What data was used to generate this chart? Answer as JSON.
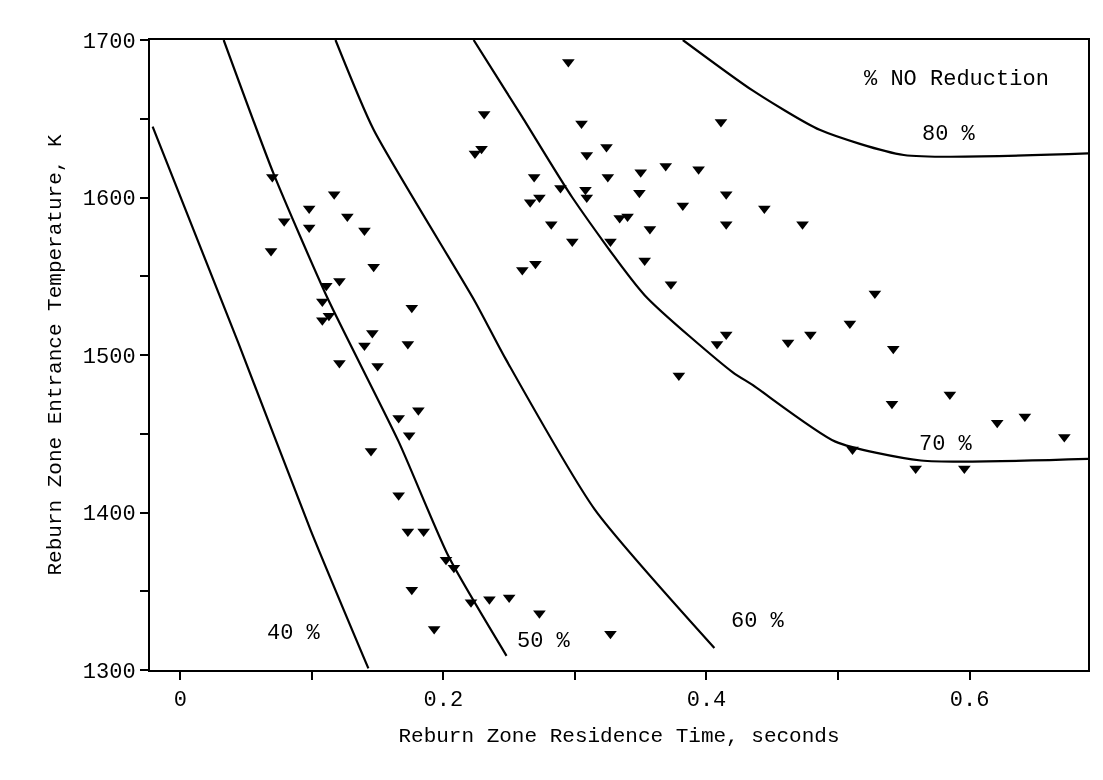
{
  "chart_data": {
    "type": "scatter",
    "xlabel": "Reburn Zone Residence Time, seconds",
    "ylabel": "Reburn Zone Entrance Temperature, K",
    "xlim": [
      -0.023,
      0.69
    ],
    "ylim": [
      1300,
      1700
    ],
    "xticks": [
      0,
      {
        "value": 0.1,
        "label": null
      },
      {
        "value": 0.2,
        "label": "0.2"
      },
      {
        "value": 0.3,
        "label": null
      },
      {
        "value": 0.4,
        "label": "0.4"
      },
      {
        "value": 0.5,
        "label": null
      },
      {
        "value": 0.6,
        "label": "0.6"
      }
    ],
    "yticks": [
      1300,
      {
        "value": 1350,
        "label": null
      },
      1400,
      {
        "value": 1450,
        "label": null
      },
      1500,
      {
        "value": 1550,
        "label": null
      },
      1600,
      {
        "value": 1650,
        "label": null
      },
      1700
    ],
    "legend": false,
    "series": [
      {
        "color": "#000000",
        "marker": "triangle",
        "x": [
          0.07,
          0.117,
          0.098,
          0.079,
          0.098,
          0.127,
          0.14,
          0.069,
          0.147,
          0.111,
          0.121,
          0.108,
          0.176,
          0.113,
          0.108,
          0.146,
          0.14,
          0.173,
          0.121,
          0.15,
          0.181,
          0.166,
          0.174,
          0.145,
          0.166,
          0.173,
          0.185,
          0.202,
          0.208,
          0.176,
          0.221,
          0.235,
          0.25,
          0.193,
          0.273,
          0.327,
          0.379,
          0.408,
          0.295,
          0.231,
          0.229,
          0.224,
          0.305,
          0.411,
          0.324,
          0.309,
          0.269,
          0.325,
          0.35,
          0.369,
          0.394,
          0.289,
          0.308,
          0.309,
          0.266,
          0.273,
          0.349,
          0.415,
          0.382,
          0.444,
          0.334,
          0.34,
          0.282,
          0.357,
          0.415,
          0.298,
          0.327,
          0.26,
          0.27,
          0.353,
          0.373,
          0.415,
          0.462,
          0.473,
          0.528,
          0.509,
          0.479,
          0.542,
          0.585,
          0.541,
          0.621,
          0.642,
          0.672,
          0.511,
          0.559,
          0.596
        ],
        "values": [
          1613,
          1602,
          1593,
          1585,
          1581,
          1588,
          1579,
          1566,
          1556,
          1544,
          1547,
          1534,
          1530,
          1525,
          1522,
          1514,
          1506,
          1507,
          1495,
          1493,
          1465,
          1460,
          1449,
          1439,
          1411,
          1388,
          1388,
          1370,
          1365,
          1351,
          1343,
          1345,
          1346,
          1326,
          1336,
          1323,
          1487,
          1507,
          1686,
          1653,
          1631,
          1628,
          1647,
          1648,
          1632,
          1627,
          1613,
          1613,
          1616,
          1620,
          1618,
          1606,
          1605,
          1600,
          1597,
          1600,
          1603,
          1602,
          1595,
          1593,
          1587,
          1588,
          1583,
          1580,
          1583,
          1572,
          1572,
          1554,
          1558,
          1560,
          1545,
          1513,
          1508,
          1583,
          1539,
          1520,
          1513,
          1504,
          1475,
          1469,
          1457,
          1461,
          1448,
          1440,
          1428,
          1428
        ]
      },
      {
        "type": "line",
        "name": "40 %",
        "color": "#000000",
        "marker": "none",
        "line_style": "solid",
        "x": [
          -0.021,
          0.044,
          0.099,
          0.143
        ],
        "values": [
          1645,
          1508,
          1389,
          1301
        ]
      },
      {
        "type": "line",
        "name": "50 %",
        "color": "#000000",
        "marker": "none",
        "line_style": "solid",
        "x": [
          0.033,
          0.071,
          0.112,
          0.166,
          0.204,
          0.248
        ],
        "values": [
          1700,
          1615,
          1536,
          1445,
          1372,
          1309
        ]
      },
      {
        "type": "line",
        "name": "60 %",
        "color": "#000000",
        "marker": "none",
        "line_style": "solid",
        "x": [
          0.118,
          0.147,
          0.224,
          0.247,
          0.315,
          0.406
        ],
        "values": [
          1700,
          1643,
          1534,
          1498,
          1402,
          1314
        ]
      },
      {
        "type": "line",
        "name": "70 %",
        "color": "#000000",
        "marker": "none",
        "line_style": "solid",
        "x": [
          0.223,
          0.26,
          0.298,
          0.353,
          0.42,
          0.435,
          0.498,
          0.563,
          0.69
        ],
        "values": [
          1700,
          1651,
          1600,
          1538,
          1489,
          1481,
          1445,
          1433,
          1434
        ]
      },
      {
        "type": "line",
        "name": "80 %",
        "color": "#000000",
        "marker": "none",
        "line_style": "solid",
        "x": [
          0.382,
          0.435,
          0.486,
          0.55,
          0.69
        ],
        "values": [
          1700,
          1668,
          1643,
          1627,
          1628
        ]
      }
    ],
    "annotations": [
      "% NO Reduction"
    ]
  }
}
